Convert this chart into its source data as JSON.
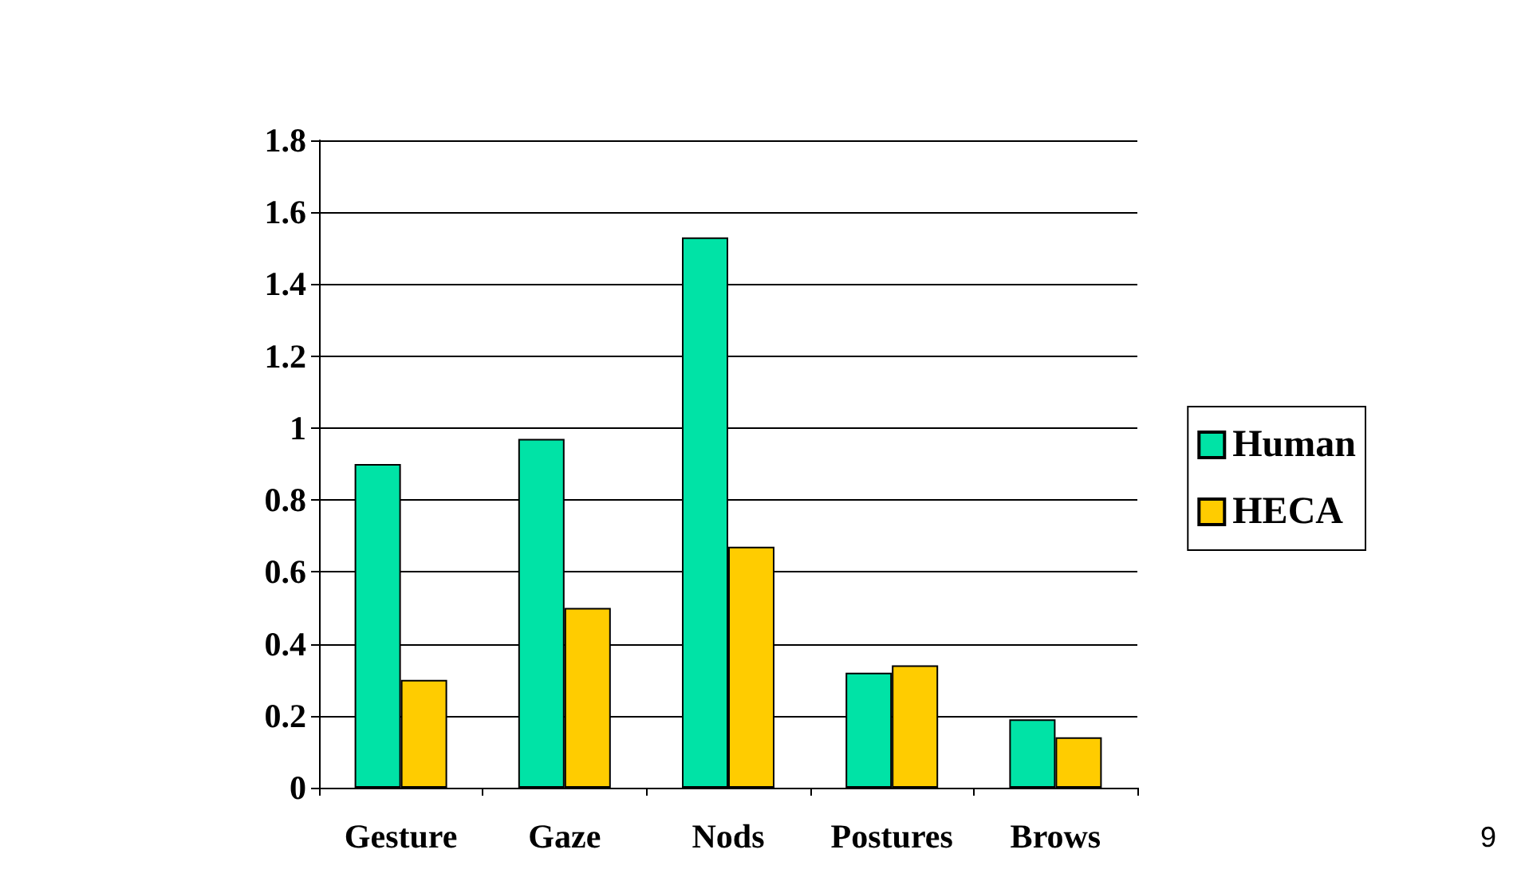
{
  "chart_data": {
    "type": "bar",
    "categories": [
      "Gesture",
      "Gaze",
      "Nods",
      "Postures",
      "Brows"
    ],
    "series": [
      {
        "name": "Human",
        "color": "#00e3a6",
        "values": [
          0.9,
          0.97,
          1.53,
          0.32,
          0.19
        ]
      },
      {
        "name": "HECA",
        "color": "#ffcc00",
        "values": [
          0.3,
          0.5,
          0.67,
          0.34,
          0.14
        ]
      }
    ],
    "ylim": [
      0,
      1.8
    ],
    "yticks": [
      0,
      0.2,
      0.4,
      0.6,
      0.8,
      1,
      1.2,
      1.4,
      1.6,
      1.8
    ],
    "grid": "y",
    "legend": "right",
    "annotations": [
      "9"
    ]
  }
}
